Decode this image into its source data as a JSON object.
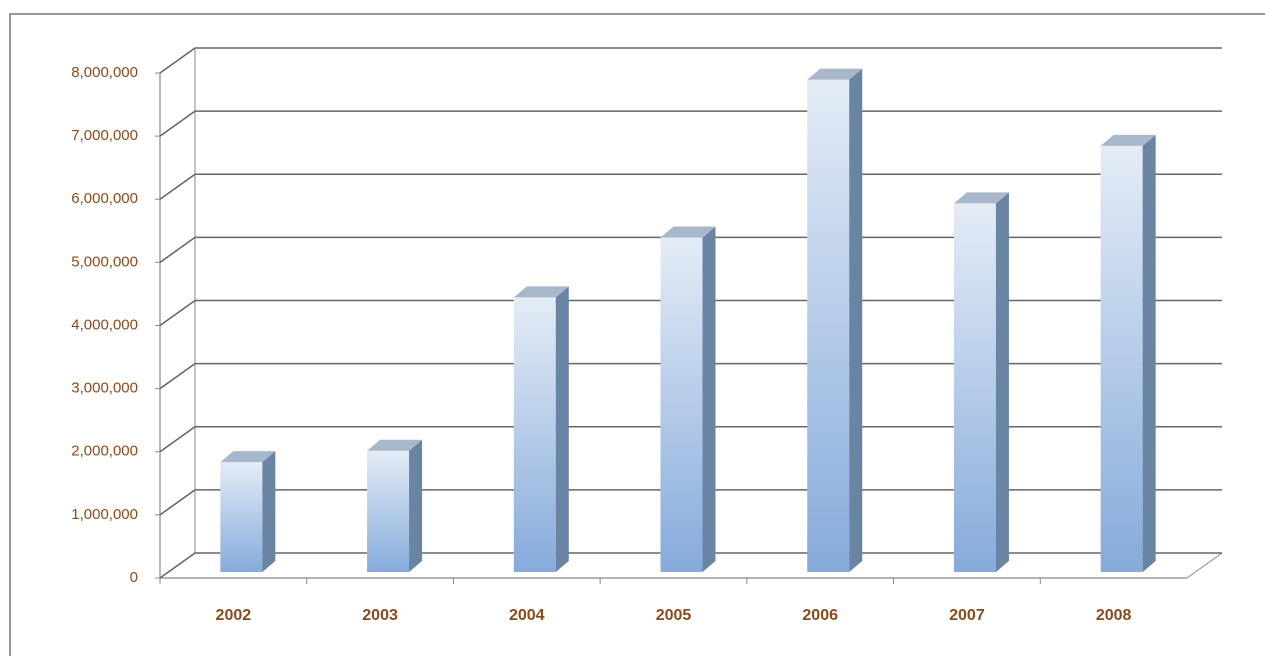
{
  "chart_data": {
    "type": "bar3d",
    "categories": [
      "2002",
      "2003",
      "2004",
      "2005",
      "2006",
      "2007",
      "2008"
    ],
    "values": [
      1740000,
      1920000,
      4350000,
      5300000,
      7800000,
      5840000,
      6750000
    ],
    "ylim": [
      0,
      8000000
    ],
    "yticks": [
      {
        "value": 0,
        "label": "0"
      },
      {
        "value": 1000000,
        "label": "1,000,000"
      },
      {
        "value": 2000000,
        "label": "2,000,000"
      },
      {
        "value": 3000000,
        "label": "3,000,000"
      },
      {
        "value": 4000000,
        "label": "4,000,000"
      },
      {
        "value": 5000000,
        "label": "5,000,000"
      },
      {
        "value": 6000000,
        "label": "6,000,000"
      },
      {
        "value": 7000000,
        "label": "7,000,000"
      },
      {
        "value": 8000000,
        "label": "8,000,000"
      }
    ],
    "grid": true,
    "color": "#8fb0dc"
  }
}
